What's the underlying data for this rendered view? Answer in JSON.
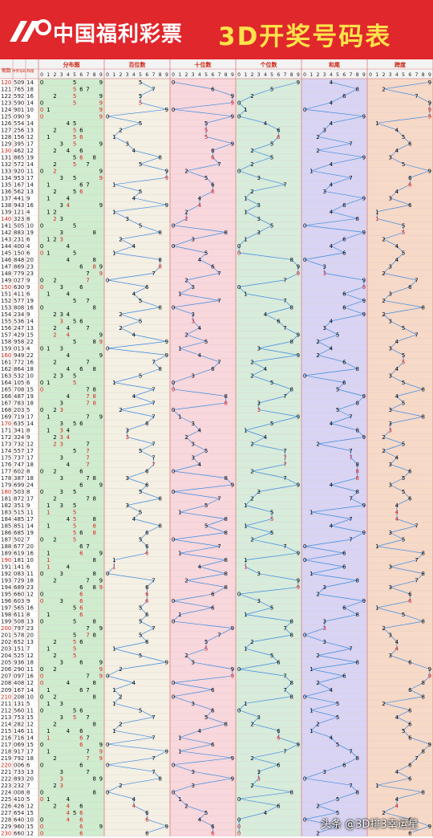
{
  "header": {
    "brand": "中国福利彩票",
    "title": "3D开奖号码表"
  },
  "colors": {
    "header_bg": "#e0272c",
    "title": "#ffe24a",
    "brand": "#ffffff",
    "sections": [
      "#cfeccf",
      "#f5f0e4",
      "#f8d7dd",
      "#d8ecdc",
      "#d9d4f3",
      "#f7d9c8"
    ],
    "line": "#3a8be0",
    "digit": "#000000",
    "repeat_digit": "#e02020"
  },
  "columns": {
    "issue": "期数",
    "number": "中奖号码",
    "sum": "和值"
  },
  "sections": [
    {
      "key": "distribution",
      "label": "分布图",
      "digits": [
        "0",
        "1",
        "2",
        "3",
        "4",
        "5",
        "6",
        "7",
        "8",
        "9"
      ]
    },
    {
      "key": "hundreds",
      "label": "百位数",
      "digits": [
        "0",
        "1",
        "2",
        "3",
        "4",
        "5",
        "6",
        "7",
        "8",
        "9"
      ]
    },
    {
      "key": "tens",
      "label": "十位数",
      "digits": [
        "0",
        "1",
        "2",
        "3",
        "4",
        "5",
        "6",
        "7",
        "8",
        "9"
      ]
    },
    {
      "key": "ones",
      "label": "个位数",
      "digits": [
        "0",
        "1",
        "2",
        "3",
        "4",
        "5",
        "6",
        "7",
        "8",
        "9"
      ]
    },
    {
      "key": "sum_tail",
      "label": "和尾",
      "digits": [
        "0",
        "1",
        "2",
        "3",
        "4",
        "5",
        "6",
        "7",
        "8",
        "9"
      ]
    },
    {
      "key": "span",
      "label": "跨度",
      "digits": [
        "0",
        "1",
        "2",
        "3",
        "4",
        "5",
        "6",
        "7",
        "8",
        "9"
      ]
    }
  ],
  "watermark": "头条 @3D排3幸运星",
  "chart_data": {
    "type": "table",
    "issue_start": 120,
    "numbers": [
      "509",
      "765",
      "592",
      "590",
      "901",
      "090",
      "554",
      "256",
      "156",
      "395",
      "462",
      "865",
      "572",
      "920",
      "953",
      "167",
      "562",
      "441",
      "943",
      "121",
      "323",
      "505",
      "883",
      "231",
      "400",
      "150",
      "848",
      "869",
      "779",
      "027",
      "630",
      "411",
      "577",
      "808",
      "234",
      "536",
      "247",
      "429",
      "958",
      "013",
      "949",
      "772",
      "864",
      "532",
      "105",
      "708",
      "487",
      "783",
      "203",
      "719",
      "635",
      "341",
      "324",
      "732",
      "557",
      "737",
      "747",
      "602",
      "387",
      "699",
      "503",
      "872",
      "351",
      "515",
      "485",
      "851",
      "685",
      "502",
      "677",
      "619",
      "181",
      "141",
      "083",
      "729",
      "689",
      "660",
      "603",
      "565",
      "611",
      "508",
      "797",
      "578",
      "652",
      "151",
      "525",
      "936",
      "290",
      "097",
      "408",
      "167",
      "208",
      "131",
      "560",
      "753",
      "282",
      "146",
      "716",
      "069",
      "917",
      "792",
      "006",
      "733",
      "893",
      "232",
      "008",
      "410",
      "426",
      "654",
      "640",
      "960",
      "660"
    ]
  }
}
